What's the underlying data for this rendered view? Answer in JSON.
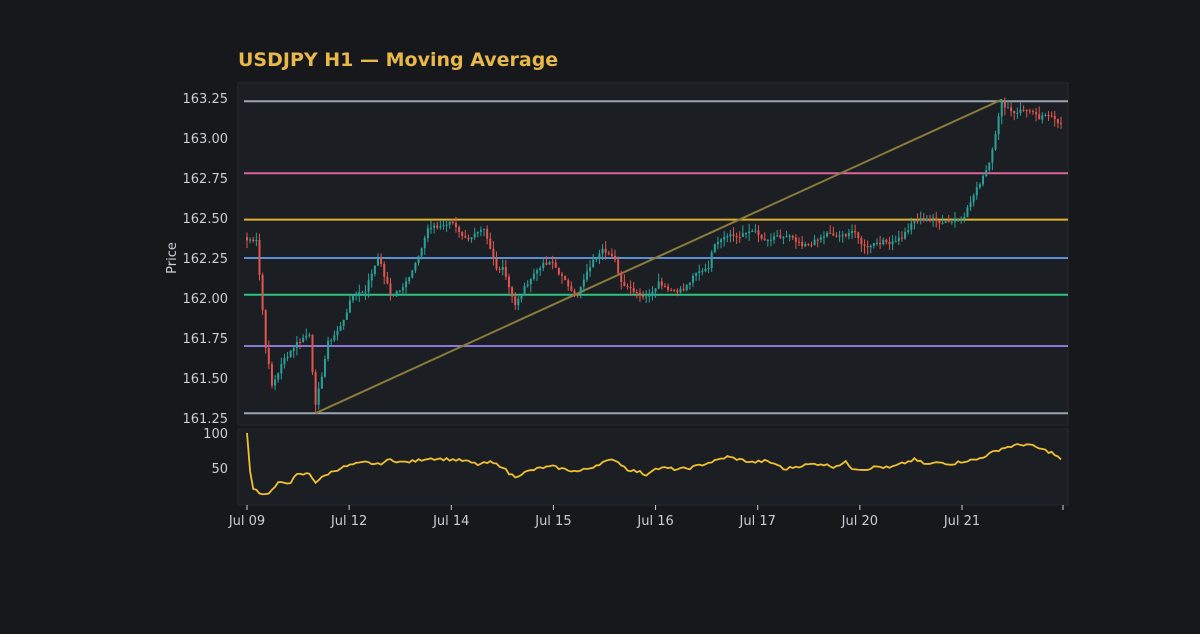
{
  "chart_data": {
    "type": "candlestick",
    "title": "USDJPY H1 — Moving Average",
    "ylabel": "Price",
    "xlabel": "",
    "ylim": [
      161.25,
      163.25
    ],
    "grid": false,
    "x_ticks": [
      "Jul 09",
      "Jul 12",
      "Jul 14",
      "Jul 15",
      "Jul 16",
      "Jul 17",
      "Jul 20",
      "Jul 21"
    ],
    "y_ticks": [
      "163.25",
      "163.00",
      "162.75",
      "162.50",
      "162.25",
      "162.00",
      "161.75",
      "161.50",
      "161.25"
    ],
    "horizontal_levels": [
      {
        "value": 163.23,
        "color": "#9aa6b2"
      },
      {
        "value": 162.78,
        "color": "#e0609b"
      },
      {
        "value": 162.49,
        "color": "#e0b030"
      },
      {
        "value": 162.25,
        "color": "#5b8fd6"
      },
      {
        "value": 162.02,
        "color": "#2ec27e"
      },
      {
        "value": 161.7,
        "color": "#8a78d6"
      },
      {
        "value": 161.28,
        "color": "#9aa6b2"
      }
    ],
    "trendline": {
      "from_bar": 22,
      "from_price": 161.28,
      "to_bar": 242,
      "to_price": 163.24,
      "color": "#8a7a3c"
    },
    "bars": 262,
    "anchors": [
      [
        0,
        162.36
      ],
      [
        3,
        162.37
      ],
      [
        6,
        161.7
      ],
      [
        8,
        161.45
      ],
      [
        12,
        161.62
      ],
      [
        16,
        161.72
      ],
      [
        20,
        161.78
      ],
      [
        22,
        161.32
      ],
      [
        26,
        161.72
      ],
      [
        30,
        161.82
      ],
      [
        34,
        162.02
      ],
      [
        38,
        162.05
      ],
      [
        42,
        162.26
      ],
      [
        46,
        162.02
      ],
      [
        50,
        162.06
      ],
      [
        54,
        162.22
      ],
      [
        58,
        162.43
      ],
      [
        62,
        162.45
      ],
      [
        66,
        162.47
      ],
      [
        70,
        162.37
      ],
      [
        76,
        162.42
      ],
      [
        80,
        162.18
      ],
      [
        82,
        162.2
      ],
      [
        86,
        161.95
      ],
      [
        90,
        162.1
      ],
      [
        94,
        162.2
      ],
      [
        98,
        162.22
      ],
      [
        102,
        162.1
      ],
      [
        106,
        162.02
      ],
      [
        110,
        162.2
      ],
      [
        114,
        162.32
      ],
      [
        118,
        162.23
      ],
      [
        120,
        162.1
      ],
      [
        124,
        162.05
      ],
      [
        128,
        162.0
      ],
      [
        132,
        162.1
      ],
      [
        136,
        162.05
      ],
      [
        140,
        162.05
      ],
      [
        144,
        162.15
      ],
      [
        148,
        162.2
      ],
      [
        150,
        162.35
      ],
      [
        154,
        162.4
      ],
      [
        158,
        162.38
      ],
      [
        162,
        162.43
      ],
      [
        166,
        162.35
      ],
      [
        170,
        162.38
      ],
      [
        174,
        162.38
      ],
      [
        178,
        162.32
      ],
      [
        182,
        162.35
      ],
      [
        186,
        162.4
      ],
      [
        190,
        162.38
      ],
      [
        194,
        162.42
      ],
      [
        198,
        162.32
      ],
      [
        202,
        162.35
      ],
      [
        206,
        162.35
      ],
      [
        210,
        162.38
      ],
      [
        214,
        162.48
      ],
      [
        218,
        162.5
      ],
      [
        222,
        162.48
      ],
      [
        226,
        162.48
      ],
      [
        230,
        162.52
      ],
      [
        234,
        162.68
      ],
      [
        238,
        162.85
      ],
      [
        242,
        163.22
      ],
      [
        246,
        163.16
      ],
      [
        250,
        163.18
      ],
      [
        254,
        163.12
      ],
      [
        258,
        163.15
      ],
      [
        261,
        163.08
      ]
    ],
    "oscillator": {
      "ylim": [
        0,
        100
      ],
      "y_ticks": [
        "100",
        "50"
      ],
      "color": "#f0c030",
      "anchors": [
        [
          0,
          100
        ],
        [
          1,
          45
        ],
        [
          2,
          22
        ],
        [
          4,
          15
        ],
        [
          6,
          12
        ],
        [
          8,
          18
        ],
        [
          10,
          28
        ],
        [
          14,
          30
        ],
        [
          16,
          40
        ],
        [
          20,
          42
        ],
        [
          22,
          30
        ],
        [
          26,
          42
        ],
        [
          30,
          50
        ],
        [
          34,
          55
        ],
        [
          38,
          58
        ],
        [
          42,
          55
        ],
        [
          46,
          62
        ],
        [
          50,
          58
        ],
        [
          54,
          60
        ],
        [
          58,
          64
        ],
        [
          62,
          63
        ],
        [
          66,
          62
        ],
        [
          70,
          60
        ],
        [
          74,
          55
        ],
        [
          78,
          58
        ],
        [
          82,
          52
        ],
        [
          84,
          42
        ],
        [
          86,
          38
        ],
        [
          90,
          45
        ],
        [
          94,
          50
        ],
        [
          98,
          52
        ],
        [
          102,
          48
        ],
        [
          106,
          45
        ],
        [
          110,
          50
        ],
        [
          114,
          58
        ],
        [
          118,
          62
        ],
        [
          122,
          48
        ],
        [
          126,
          44
        ],
        [
          128,
          40
        ],
        [
          130,
          48
        ],
        [
          134,
          50
        ],
        [
          138,
          48
        ],
        [
          142,
          50
        ],
        [
          146,
          55
        ],
        [
          150,
          60
        ],
        [
          154,
          66
        ],
        [
          158,
          62
        ],
        [
          162,
          58
        ],
        [
          166,
          60
        ],
        [
          170,
          55
        ],
        [
          172,
          48
        ],
        [
          176,
          52
        ],
        [
          180,
          55
        ],
        [
          184,
          56
        ],
        [
          188,
          52
        ],
        [
          192,
          58
        ],
        [
          194,
          50
        ],
        [
          198,
          48
        ],
        [
          202,
          52
        ],
        [
          206,
          50
        ],
        [
          210,
          56
        ],
        [
          214,
          62
        ],
        [
          218,
          55
        ],
        [
          222,
          58
        ],
        [
          226,
          56
        ],
        [
          230,
          60
        ],
        [
          234,
          62
        ],
        [
          238,
          70
        ],
        [
          242,
          78
        ],
        [
          246,
          82
        ],
        [
          250,
          84
        ],
        [
          254,
          78
        ],
        [
          258,
          72
        ],
        [
          261,
          62
        ]
      ]
    }
  },
  "colors": {
    "background": "#16181c",
    "panel": "#1b1e23",
    "panel_border": "#262a31",
    "axis_text": "#c9ced6",
    "title": "#e8b84a",
    "up": "#2aa198",
    "down": "#e0554d"
  }
}
